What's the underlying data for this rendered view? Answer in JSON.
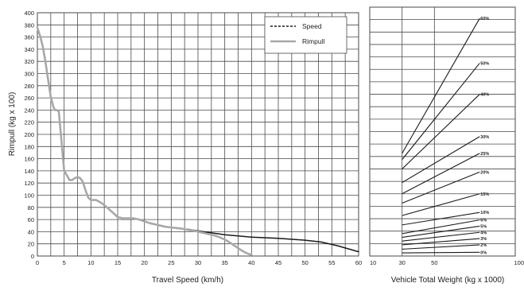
{
  "colors": {
    "grid": "#4a4a4a",
    "text": "#222222",
    "speed": "#1a1a1a",
    "rimpull": "#a8a8a8",
    "grade_line": "#1a1a1a"
  },
  "chart_data": [
    {
      "type": "line",
      "xlabel": "Travel Speed (km/h)",
      "ylabel": "Rimpull (kg x 100)",
      "xlim": [
        0,
        60
      ],
      "ylim": [
        0,
        400
      ],
      "xticks": [
        0,
        5,
        10,
        15,
        20,
        25,
        30,
        35,
        40,
        45,
        50,
        55,
        60
      ],
      "yticks": [
        0,
        20,
        40,
        60,
        80,
        100,
        120,
        140,
        160,
        180,
        200,
        220,
        240,
        260,
        280,
        300,
        320,
        340,
        360,
        380,
        400
      ],
      "x_grid_step": 2.5,
      "grid": true,
      "legend_position": "top-right",
      "series": [
        {
          "name": "Speed",
          "style": "dashed",
          "x": [
            28,
            31,
            35,
            40,
            45,
            50,
            53,
            56,
            60
          ],
          "y": [
            44,
            40,
            35,
            31,
            29,
            26,
            23,
            17,
            7
          ]
        },
        {
          "name": "Rimpull",
          "style": "solid",
          "x": [
            0,
            0.5,
            1,
            1.5,
            2,
            2.5,
            3,
            3.3,
            3.6,
            4,
            4.4,
            4.7,
            5,
            5.5,
            6,
            6.5,
            7,
            7.5,
            8,
            8.5,
            9,
            9.5,
            10,
            11,
            12,
            13,
            14,
            15,
            16,
            17,
            18,
            19,
            20,
            21,
            22,
            23,
            24,
            25,
            26,
            27,
            28,
            29,
            30,
            31,
            32,
            33,
            34,
            35,
            36,
            37,
            38,
            39,
            40
          ],
          "y": [
            375,
            362,
            345,
            320,
            290,
            262,
            245,
            240,
            240,
            238,
            200,
            170,
            140,
            133,
            125,
            125,
            128,
            130,
            128,
            122,
            108,
            96,
            92,
            92,
            87,
            80,
            72,
            64,
            62,
            62,
            62,
            60,
            57,
            54,
            52,
            50,
            48,
            47,
            46,
            45,
            43,
            42,
            40,
            38,
            36,
            34,
            31,
            27,
            22,
            16,
            10,
            5,
            2
          ]
        }
      ]
    },
    {
      "type": "line",
      "xlabel": "Vehicle Total Weight (kg x 1000)",
      "ylabel": "",
      "xlim": [
        10,
        100
      ],
      "ylim": [
        0,
        400
      ],
      "xticks": [
        10,
        30,
        50,
        100
      ],
      "xtick_labels": [
        "10",
        "30",
        "50",
        "100"
      ],
      "grid": true,
      "series": [
        {
          "label": "0%",
          "x": [
            30,
            78
          ],
          "y": [
            5,
            6
          ]
        },
        {
          "label": "2%",
          "x": [
            30,
            78
          ],
          "y": [
            11,
            18
          ]
        },
        {
          "label": "3%",
          "x": [
            30,
            78
          ],
          "y": [
            18,
            28
          ]
        },
        {
          "label": "4%",
          "x": [
            30,
            78
          ],
          "y": [
            24,
            38
          ]
        },
        {
          "label": "5%",
          "x": [
            30,
            78
          ],
          "y": [
            30,
            48
          ]
        },
        {
          "label": "6%",
          "x": [
            30,
            78
          ],
          "y": [
            36,
            58
          ]
        },
        {
          "label": "10%",
          "x": [
            30,
            78
          ],
          "y": [
            50,
            70
          ]
        },
        {
          "label": "15%",
          "x": [
            30,
            78
          ],
          "y": [
            65,
            100
          ]
        },
        {
          "label": "20%",
          "x": [
            30,
            78
          ],
          "y": [
            85,
            135
          ]
        },
        {
          "label": "25%",
          "x": [
            30,
            78
          ],
          "y": [
            100,
            165
          ]
        },
        {
          "label": "30%",
          "x": [
            30,
            78
          ],
          "y": [
            118,
            192
          ]
        },
        {
          "label": "40%",
          "x": [
            30,
            78
          ],
          "y": [
            140,
            260
          ]
        },
        {
          "label": "50%",
          "x": [
            30,
            78
          ],
          "y": [
            155,
            310
          ]
        },
        {
          "label": "60%",
          "x": [
            30,
            78
          ],
          "y": [
            165,
            382
          ]
        }
      ]
    }
  ]
}
